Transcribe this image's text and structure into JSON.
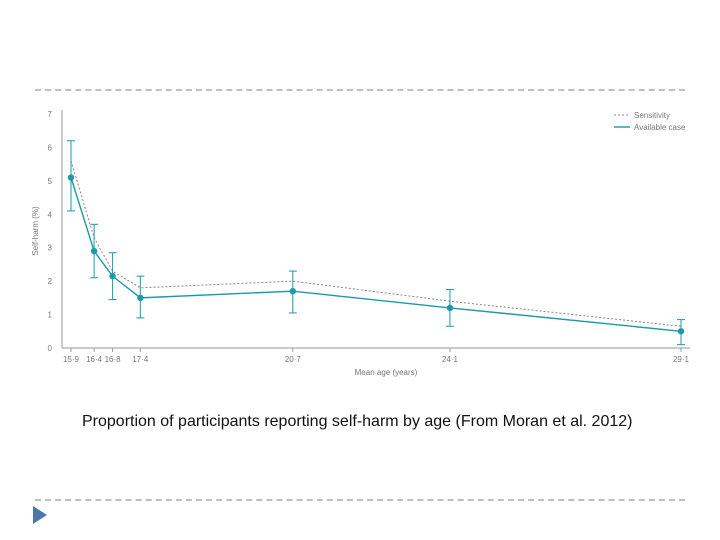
{
  "caption": "Proportion of participants reporting self-harm by age (From Moran et al. 2012)",
  "colors": {
    "sensitivity": "#888888",
    "available_case": "#1a9aaa",
    "axis": "#999999",
    "text": "#777777",
    "rule": "#b9c0c6",
    "arrow": "#4a78a8"
  },
  "icons": {
    "nav": "triangle-right-icon"
  },
  "chart_data": {
    "type": "line",
    "title": "",
    "xlabel": "Mean age (years)",
    "ylabel": "Self-harm (%)",
    "x": [
      15.9,
      16.4,
      16.8,
      17.4,
      20.7,
      24.1,
      29.1
    ],
    "x_tick_labels": [
      "15·9",
      "16·4",
      "16·8",
      "17·4",
      "20·7",
      "24·1",
      "29·1"
    ],
    "y_ticks": [
      0,
      1,
      2,
      3,
      4,
      5,
      6,
      7
    ],
    "ylim": [
      0,
      7
    ],
    "grid": false,
    "legend": "top-right",
    "series": [
      {
        "name": "Sensitivity",
        "style": "dotted",
        "values": [
          5.6,
          3.3,
          2.3,
          1.8,
          2.0,
          1.4,
          0.65
        ]
      },
      {
        "name": "Available case",
        "style": "solid",
        "values": [
          5.1,
          2.9,
          2.15,
          1.5,
          1.7,
          1.2,
          0.5
        ],
        "error_low": [
          4.1,
          2.1,
          1.45,
          0.9,
          1.05,
          0.65,
          0.1
        ],
        "error_high": [
          6.2,
          3.7,
          2.85,
          2.15,
          2.3,
          1.75,
          0.85
        ]
      }
    ]
  }
}
